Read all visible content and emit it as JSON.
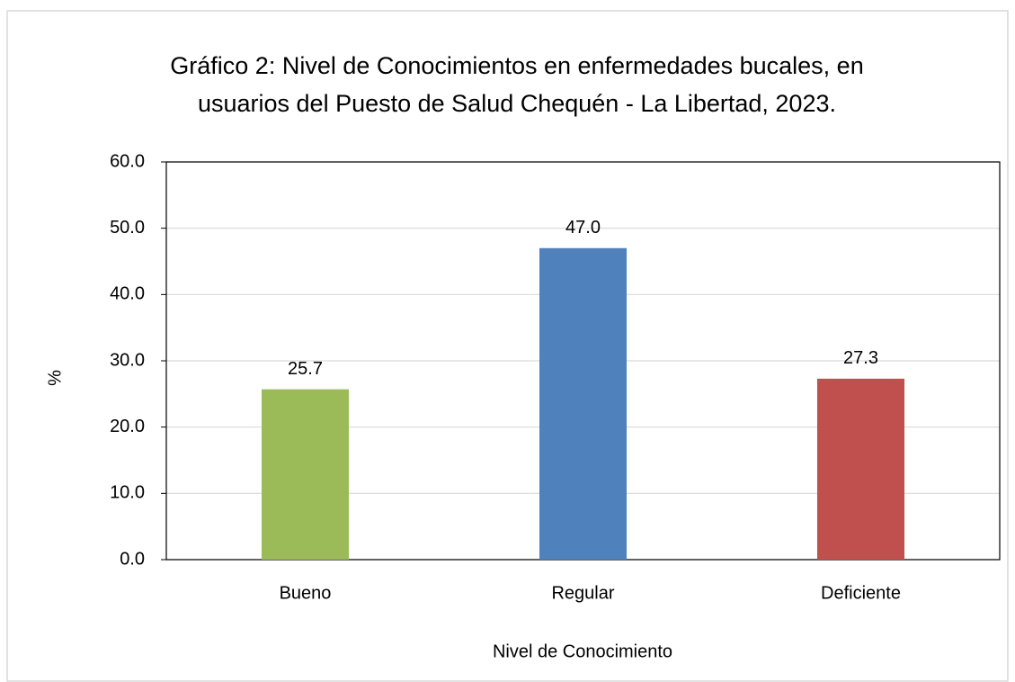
{
  "chart_data": {
    "type": "bar",
    "title": [
      "Gráfico 2: Nivel de Conocimientos en enfermedades bucales, en",
      "usuarios del Puesto de Salud Chequén - La Libertad, 2023."
    ],
    "x_label": "Nivel de Conocimiento",
    "y_label": "%",
    "categories": [
      "Bueno",
      "Regular",
      "Deficiente"
    ],
    "values": [
      25.7,
      47,
      27.3
    ],
    "value_labels": [
      "25.7",
      "47.0",
      "27.3"
    ],
    "colors": [
      "#9bbb59",
      "#4f81bd",
      "#c0504d"
    ],
    "ylim": [
      0,
      60
    ],
    "yticks": [
      {
        "value": 0,
        "label": "0.0"
      },
      {
        "value": 10,
        "label": "10.0"
      },
      {
        "value": 20,
        "label": "20.0"
      },
      {
        "value": 30,
        "label": "30.0"
      },
      {
        "value": 40,
        "label": "40.0"
      },
      {
        "value": 50,
        "label": "50.0"
      },
      {
        "value": 60,
        "label": "60.0"
      }
    ],
    "grid": true
  }
}
